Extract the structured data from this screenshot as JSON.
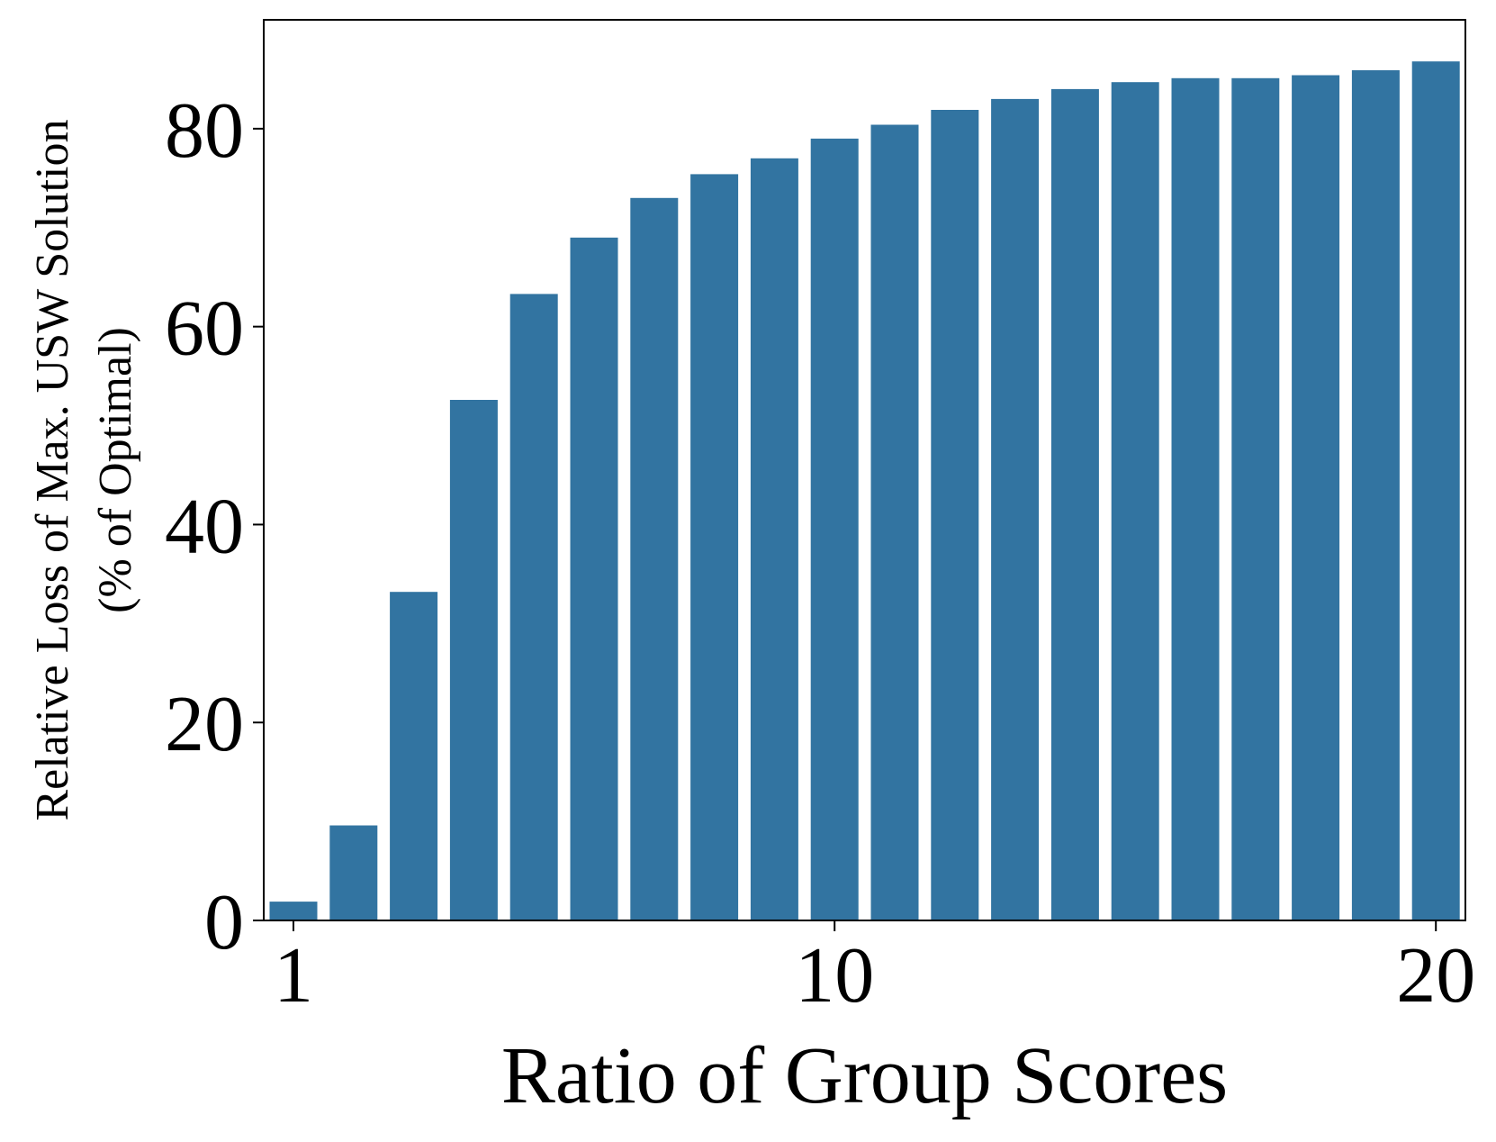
{
  "chart_data": {
    "type": "bar",
    "title": "",
    "xlabel": "Ratio of Group Scores",
    "ylabel_lines": [
      "Relative Loss of Max. USW Solution",
      "(% of Optimal)"
    ],
    "x": [
      1,
      2,
      3,
      4,
      5,
      6,
      7,
      8,
      9,
      10,
      11,
      12,
      13,
      14,
      15,
      16,
      17,
      18,
      19,
      20
    ],
    "values": [
      1.9,
      9.6,
      33.2,
      52.6,
      63.3,
      69.0,
      73.0,
      75.4,
      77.0,
      79.0,
      80.4,
      81.9,
      83.0,
      84.0,
      84.7,
      85.1,
      85.1,
      85.4,
      85.9,
      86.8
    ],
    "x_ticks": [
      1,
      10,
      20
    ],
    "x_tick_labels": [
      "1",
      "10",
      "20"
    ],
    "y_ticks": [
      0,
      20,
      40,
      60,
      80
    ],
    "y_tick_labels": [
      "0",
      "20",
      "40",
      "60",
      "80"
    ],
    "ylim": [
      0,
      91
    ],
    "bar_color": "#3274a1",
    "grid": false,
    "legend": "none"
  }
}
